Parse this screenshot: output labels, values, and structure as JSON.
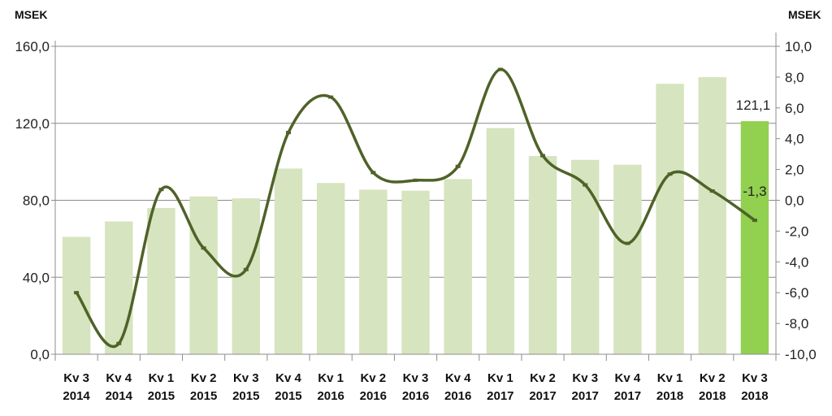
{
  "chart_data": {
    "type": "bar",
    "left_axis_label": "MSEK",
    "right_axis_label": "MSEK",
    "categories": [
      {
        "line1": "Kv 3",
        "line2": "2014"
      },
      {
        "line1": "Kv 4",
        "line2": "2014"
      },
      {
        "line1": "Kv 1",
        "line2": "2015"
      },
      {
        "line1": "Kv 2",
        "line2": "2015"
      },
      {
        "line1": "Kv 3",
        "line2": "2015"
      },
      {
        "line1": "Kv 4",
        "line2": "2015"
      },
      {
        "line1": "Kv 1",
        "line2": "2016"
      },
      {
        "line1": "Kv 2",
        "line2": "2016"
      },
      {
        "line1": "Kv 3",
        "line2": "2016"
      },
      {
        "line1": "Kv 4",
        "line2": "2016"
      },
      {
        "line1": "Kv 1",
        "line2": "2017"
      },
      {
        "line1": "Kv 2",
        "line2": "2017"
      },
      {
        "line1": "Kv 3",
        "line2": "2017"
      },
      {
        "line1": "Kv 4",
        "line2": "2017"
      },
      {
        "line1": "Kv 1",
        "line2": "2018"
      },
      {
        "line1": "Kv 2",
        "line2": "2018"
      },
      {
        "line1": "Kv 3",
        "line2": "2018"
      }
    ],
    "bar_series": {
      "values": [
        61,
        69,
        76,
        82,
        81,
        96.5,
        89,
        85.5,
        85,
        91,
        117.5,
        103,
        101,
        98.5,
        140.5,
        144,
        121.1
      ],
      "color": "#d6e4bf",
      "highlight_color": "#92d050",
      "highlight_index": 16
    },
    "line_series": {
      "values": [
        -6.0,
        -9.3,
        0.7,
        -3.1,
        -4.5,
        4.4,
        6.7,
        1.8,
        1.3,
        2.2,
        8.5,
        2.9,
        1.0,
        -2.8,
        1.7,
        0.6,
        -1.3
      ],
      "color": "#4f6228"
    },
    "left_axis": {
      "min": 0,
      "max": 160,
      "ticks": [
        "0,0",
        "40,0",
        "80,0",
        "120,0",
        "160,0"
      ],
      "tick_values": [
        0,
        40,
        80,
        120,
        160
      ]
    },
    "right_axis": {
      "min": -10,
      "max": 10,
      "ticks": [
        "-10,0",
        "-8,0",
        "-6,0",
        "-4,0",
        "-2,0",
        "0,0",
        "2,0",
        "4,0",
        "6,0",
        "8,0",
        "10,0"
      ],
      "tick_values": [
        -10,
        -8,
        -6,
        -4,
        -2,
        0,
        2,
        4,
        6,
        8,
        10
      ]
    },
    "data_labels": {
      "bar_last": "121,1",
      "line_last": "-1,3"
    },
    "grid": true
  }
}
